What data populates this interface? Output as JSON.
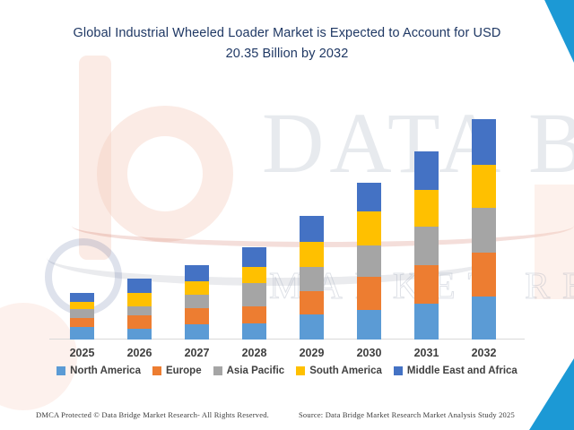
{
  "header": {
    "title_line1": "Global Industrial Wheeled Loader Market is Expected to Account for USD",
    "title_line2": "20.35 Billion by 2032"
  },
  "chart_data": {
    "type": "bar",
    "stacked": true,
    "title": "Global Industrial Wheeled Loader Market is Expected to Account for USD 20.35 Billion by 2032",
    "unit": "USD Billion",
    "stated_value_2032": 20.35,
    "categories": [
      "2025",
      "2026",
      "2027",
      "2028",
      "2029",
      "2030",
      "2031",
      "2032"
    ],
    "series": [
      {
        "name": "North America",
        "color": "#5B9BD5",
        "values": [
          1.2,
          1.0,
          1.4,
          1.5,
          2.3,
          2.7,
          3.3,
          3.95
        ]
      },
      {
        "name": "Europe",
        "color": "#ED7D31",
        "values": [
          0.8,
          1.2,
          1.5,
          1.6,
          2.2,
          3.1,
          3.6,
          4.05
        ]
      },
      {
        "name": "Asia Pacific",
        "color": "#A5A5A5",
        "values": [
          0.8,
          0.9,
          1.2,
          2.1,
          2.2,
          2.9,
          3.5,
          4.15
        ]
      },
      {
        "name": "South America",
        "color": "#FFC000",
        "values": [
          0.7,
          1.2,
          1.3,
          1.5,
          2.3,
          3.1,
          3.4,
          3.95
        ]
      },
      {
        "name": "Middle East and Africa",
        "color": "#4472C4",
        "values": [
          0.8,
          1.3,
          1.5,
          1.8,
          2.4,
          2.7,
          3.6,
          4.25
        ]
      }
    ],
    "totals_estimated": [
      4.3,
      5.6,
      6.9,
      8.5,
      11.4,
      14.5,
      17.4,
      20.35
    ],
    "legend_position": "bottom",
    "gridlines": false,
    "y_axis": "hidden"
  },
  "watermark": {
    "text_primary": "DATA BRIDGE",
    "text_secondary": "MARKET RESEARCH",
    "logo": "data-bridge-b-logo"
  },
  "footer": {
    "left": "DMCA Protected © Data Bridge Market Research-  All Rights Reserved.",
    "right": "Source: Data Bridge Market Research  Market Analysis Study 2025"
  },
  "colors": {
    "title_text": "#1F3864",
    "axis_line": "#D9D9D9",
    "year_label": "#3F3F3F",
    "legend_text": "#404040",
    "corner_accent": "#1C99D5",
    "watermark_peach": "#F6CDBE"
  }
}
